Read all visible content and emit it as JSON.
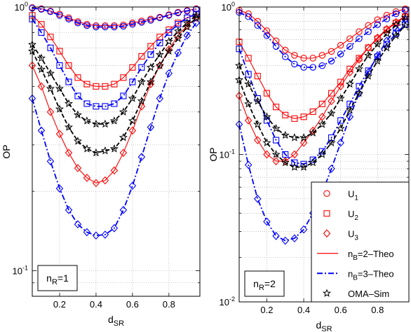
{
  "chart_data": [
    {
      "type": "line",
      "panel_label": {
        "main": "n",
        "sub": "R",
        "tail": "=1"
      },
      "xlabel": {
        "main": "d",
        "sub": "SR"
      },
      "ylabel": "OP",
      "xlim": [
        0.05,
        0.97
      ],
      "ylim": [
        0.08,
        1
      ],
      "yscale": "log",
      "x_ticks": [
        "0.2",
        "0.4",
        "0.6",
        "0.8"
      ],
      "y_ticks": [
        {
          "base": "10",
          "exp": "0",
          "value": 1
        },
        {
          "base": "10",
          "exp": "-1",
          "value": 0.1
        }
      ],
      "grid": true,
      "x": [
        0.05,
        0.1,
        0.15,
        0.2,
        0.25,
        0.3,
        0.35,
        0.4,
        0.45,
        0.5,
        0.55,
        0.6,
        0.65,
        0.7,
        0.75,
        0.8,
        0.85,
        0.9,
        0.95
      ],
      "series": [
        {
          "group": "B=2",
          "user": "U1",
          "values": [
            0.995,
            0.985,
            0.965,
            0.94,
            0.91,
            0.88,
            0.86,
            0.85,
            0.85,
            0.85,
            0.855,
            0.87,
            0.885,
            0.9,
            0.915,
            0.935,
            0.955,
            0.97,
            0.985
          ]
        },
        {
          "group": "B=2",
          "user": "U2",
          "values": [
            0.93,
            0.86,
            0.77,
            0.68,
            0.6,
            0.54,
            0.51,
            0.5,
            0.5,
            0.51,
            0.54,
            0.59,
            0.65,
            0.71,
            0.77,
            0.82,
            0.87,
            0.91,
            0.94
          ]
        },
        {
          "group": "B=2",
          "user": "U3",
          "values": [
            0.6,
            0.5,
            0.4,
            0.33,
            0.28,
            0.245,
            0.225,
            0.215,
            0.22,
            0.24,
            0.28,
            0.34,
            0.42,
            0.51,
            0.6,
            0.69,
            0.78,
            0.85,
            0.91
          ]
        },
        {
          "group": "B=3",
          "user": "U1",
          "values": [
            0.99,
            0.98,
            0.96,
            0.93,
            0.9,
            0.87,
            0.85,
            0.84,
            0.84,
            0.84,
            0.845,
            0.86,
            0.875,
            0.89,
            0.91,
            0.93,
            0.95,
            0.965,
            0.98
          ]
        },
        {
          "group": "B=3",
          "user": "U2",
          "values": [
            0.9,
            0.8,
            0.7,
            0.6,
            0.52,
            0.46,
            0.43,
            0.42,
            0.42,
            0.43,
            0.46,
            0.52,
            0.59,
            0.66,
            0.73,
            0.8,
            0.86,
            0.91,
            0.94
          ]
        },
        {
          "group": "B=3",
          "user": "U3",
          "values": [
            0.45,
            0.34,
            0.26,
            0.205,
            0.17,
            0.15,
            0.14,
            0.136,
            0.137,
            0.145,
            0.17,
            0.21,
            0.27,
            0.35,
            0.45,
            0.56,
            0.67,
            0.78,
            0.87
          ]
        },
        {
          "group": "OMA",
          "user": "upper",
          "values": [
            0.72,
            0.64,
            0.56,
            0.49,
            0.43,
            0.39,
            0.37,
            0.36,
            0.36,
            0.37,
            0.4,
            0.45,
            0.52,
            0.59,
            0.66,
            0.74,
            0.81,
            0.87,
            0.93
          ]
        },
        {
          "group": "OMA",
          "user": "lower",
          "values": [
            0.68,
            0.58,
            0.49,
            0.41,
            0.35,
            0.31,
            0.29,
            0.28,
            0.285,
            0.29,
            0.32,
            0.37,
            0.44,
            0.52,
            0.6,
            0.68,
            0.76,
            0.84,
            0.91
          ]
        }
      ]
    },
    {
      "type": "line",
      "panel_label": {
        "main": "n",
        "sub": "R",
        "tail": "=2"
      },
      "xlabel": {
        "main": "d",
        "sub": "SR"
      },
      "ylabel": "OP",
      "xlim": [
        0.05,
        0.97
      ],
      "ylim": [
        0.01,
        1
      ],
      "yscale": "log",
      "x_ticks": [
        "0.2",
        "0.4",
        "0.6",
        "0.8"
      ],
      "y_ticks": [
        {
          "base": "10",
          "exp": "0",
          "value": 1
        },
        {
          "base": "10",
          "exp": "-1",
          "value": 0.1
        },
        {
          "base": "10",
          "exp": "-2",
          "value": 0.01
        }
      ],
      "grid": true,
      "x": [
        0.05,
        0.1,
        0.15,
        0.2,
        0.25,
        0.3,
        0.35,
        0.4,
        0.45,
        0.5,
        0.55,
        0.6,
        0.65,
        0.7,
        0.75,
        0.8,
        0.85,
        0.9,
        0.95
      ],
      "series": [
        {
          "group": "B=2",
          "user": "U1",
          "values": [
            0.95,
            0.9,
            0.8,
            0.69,
            0.59,
            0.51,
            0.47,
            0.45,
            0.45,
            0.47,
            0.5,
            0.55,
            0.61,
            0.68,
            0.75,
            0.82,
            0.88,
            0.93,
            0.97
          ]
        },
        {
          "group": "B=2",
          "user": "U2",
          "values": [
            0.58,
            0.45,
            0.34,
            0.26,
            0.21,
            0.185,
            0.175,
            0.18,
            0.195,
            0.22,
            0.26,
            0.31,
            0.38,
            0.45,
            0.53,
            0.61,
            0.7,
            0.78,
            0.86
          ]
        },
        {
          "group": "B=2",
          "user": "U3",
          "values": [
            0.25,
            0.17,
            0.125,
            0.1,
            0.09,
            0.09,
            0.1,
            0.12,
            0.145,
            0.18,
            0.23,
            0.29,
            0.36,
            0.44,
            0.53,
            0.62,
            0.71,
            0.79,
            0.87
          ]
        },
        {
          "group": "B=3",
          "user": "U1",
          "values": [
            0.92,
            0.86,
            0.75,
            0.64,
            0.54,
            0.46,
            0.41,
            0.39,
            0.39,
            0.4,
            0.43,
            0.48,
            0.54,
            0.61,
            0.68,
            0.76,
            0.83,
            0.9,
            0.95
          ]
        },
        {
          "group": "B=3",
          "user": "U2",
          "values": [
            0.52,
            0.35,
            0.24,
            0.17,
            0.125,
            0.1,
            0.088,
            0.086,
            0.092,
            0.105,
            0.13,
            0.17,
            0.22,
            0.29,
            0.37,
            0.46,
            0.56,
            0.66,
            0.76
          ]
        },
        {
          "group": "B=3",
          "user": "U3",
          "values": [
            0.16,
            0.085,
            0.05,
            0.035,
            0.028,
            0.026,
            0.027,
            0.031,
            0.04,
            0.055,
            0.08,
            0.12,
            0.18,
            0.26,
            0.36,
            0.47,
            0.59,
            0.71,
            0.82
          ]
        },
        {
          "group": "OMA",
          "user": "upper",
          "values": [
            0.4,
            0.3,
            0.23,
            0.18,
            0.15,
            0.135,
            0.13,
            0.13,
            0.14,
            0.16,
            0.19,
            0.24,
            0.3,
            0.38,
            0.47,
            0.56,
            0.66,
            0.76,
            0.85
          ]
        },
        {
          "group": "OMA",
          "user": "lower",
          "values": [
            0.32,
            0.22,
            0.16,
            0.12,
            0.1,
            0.088,
            0.082,
            0.082,
            0.088,
            0.1,
            0.12,
            0.15,
            0.2,
            0.26,
            0.34,
            0.43,
            0.53,
            0.64,
            0.75
          ]
        }
      ]
    }
  ],
  "legend": {
    "placement": "lower-right of right panel",
    "entries": [
      {
        "label": "U",
        "sub": "1",
        "tail": "",
        "marker": "circle",
        "color": "#ff0000",
        "line": "none"
      },
      {
        "label": "U",
        "sub": "2",
        "tail": "",
        "marker": "square",
        "color": "#ff0000",
        "line": "none"
      },
      {
        "label": "U",
        "sub": "3",
        "tail": "",
        "marker": "diamond",
        "color": "#ff0000",
        "line": "none"
      },
      {
        "label": "n",
        "sub": "B",
        "tail": "=2–Theo",
        "marker": "none",
        "color": "#ff0000",
        "line": "solid"
      },
      {
        "label": "n",
        "sub": "B",
        "tail": "=3–Theo",
        "marker": "none",
        "color": "#0000ff",
        "line": "dashdot"
      },
      {
        "label": "OMA–Sim",
        "sub": "",
        "tail": "",
        "marker": "star",
        "color": "#000000",
        "line": "none"
      }
    ]
  },
  "colors": {
    "B=2": "#ff0000",
    "B=3": "#0000ff",
    "OMA": "#000000",
    "grid": "#bfbfbf"
  }
}
